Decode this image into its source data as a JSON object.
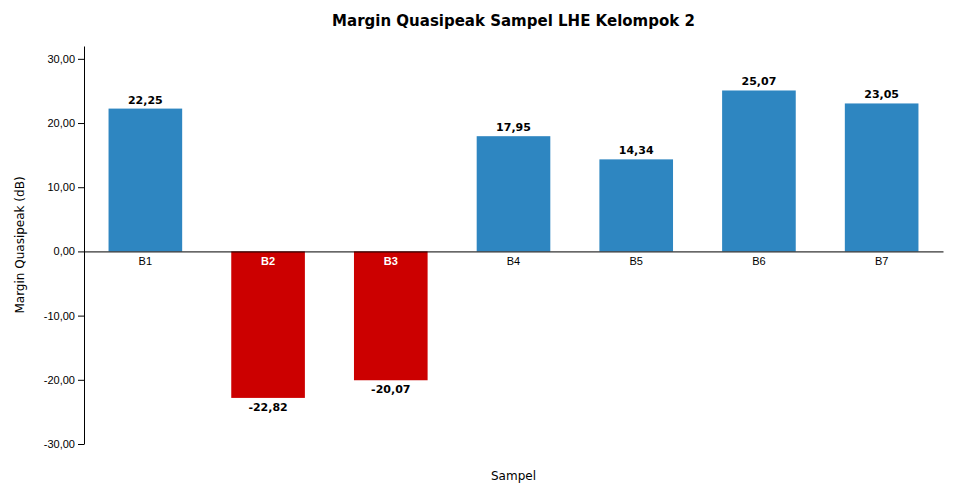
{
  "chart_data": {
    "type": "bar",
    "title": "Margin Quasipeak Sampel LHE Kelompok 2",
    "xlabel": "Sampel",
    "ylabel": "Margin Quasipeak (dB)",
    "categories": [
      "B1",
      "B2",
      "B3",
      "B4",
      "B5",
      "B6",
      "B7"
    ],
    "values": [
      22.25,
      -22.82,
      -20.07,
      17.95,
      14.34,
      25.07,
      23.05
    ],
    "value_labels": [
      "22,25",
      "-22,82",
      "-20,07",
      "17,95",
      "14,34",
      "25,07",
      "23,05"
    ],
    "colors": [
      "#2E86C1",
      "#CC0000",
      "#CC0000",
      "#2E86C1",
      "#2E86C1",
      "#2E86C1",
      "#2E86C1"
    ],
    "ylim": [
      -30,
      32
    ],
    "yticks": [
      {
        "value": -30,
        "label": "-30,00"
      },
      {
        "value": -20,
        "label": "-20,00"
      },
      {
        "value": -10,
        "label": "-10,00"
      },
      {
        "value": 0,
        "label": "0,00"
      },
      {
        "value": 10,
        "label": "10,00"
      },
      {
        "value": 20,
        "label": "20,00"
      },
      {
        "value": 30,
        "label": "30,00"
      }
    ],
    "grid": false,
    "data_labels": true
  }
}
